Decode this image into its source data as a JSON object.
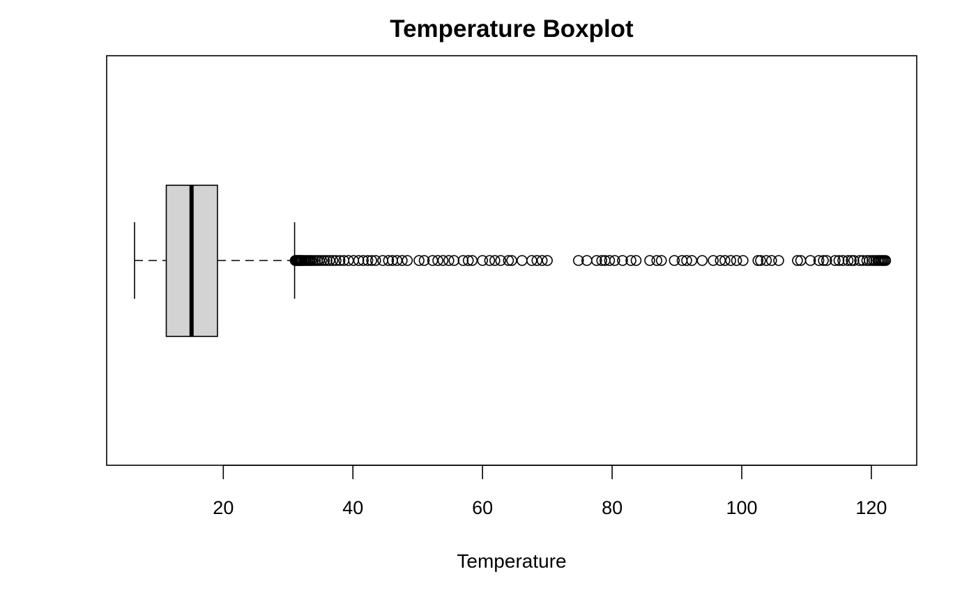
{
  "chart_data": {
    "type": "boxplot",
    "orientation": "horizontal",
    "title": "Temperature Boxplot",
    "xlabel": "Temperature",
    "ylabel": "",
    "xlim": [
      2,
      127
    ],
    "xticks": [
      20,
      40,
      60,
      80,
      100,
      120
    ],
    "xtick_labels": [
      "20",
      "40",
      "60",
      "80",
      "100",
      "120"
    ],
    "grid": false,
    "box": {
      "whisker_low": 6.3,
      "q1": 11.2,
      "median": 15.1,
      "q3": 19.1,
      "whisker_high": 31.0,
      "fill": "#d3d3d3"
    },
    "outliers": [
      31.1,
      31.2,
      31.3,
      31.4,
      31.5,
      31.6,
      31.7,
      31.8,
      31.9,
      32.0,
      32.1,
      32.2,
      32.4,
      32.6,
      32.8,
      33.0,
      33.2,
      33.4,
      33.6,
      33.9,
      34.2,
      34.5,
      34.8,
      35.2,
      35.6,
      36.0,
      36.4,
      36.9,
      37.4,
      38.0,
      38.6,
      39.3,
      40.1,
      40.9,
      41.6,
      42.3,
      42.9,
      43.5,
      44.6,
      45.5,
      46.1,
      46.8,
      47.6,
      48.4,
      50.2,
      51.0,
      52.3,
      53.1,
      53.9,
      54.8,
      55.6,
      57.0,
      57.8,
      58.4,
      60.0,
      61.1,
      61.9,
      62.8,
      64.0,
      64.5,
      66.1,
      67.6,
      68.4,
      69.2,
      70.0,
      74.8,
      76.1,
      77.6,
      78.4,
      78.9,
      79.6,
      80.4,
      81.6,
      82.9,
      83.7,
      85.8,
      86.9,
      87.6,
      89.6,
      90.8,
      91.5,
      92.3,
      93.9,
      95.6,
      96.7,
      97.4,
      98.3,
      99.2,
      100.2,
      102.5,
      102.9,
      103.8,
      104.6,
      105.7,
      108.6,
      109.1,
      110.6,
      111.9,
      112.6,
      113.1,
      114.4,
      115.0,
      115.6,
      116.4,
      116.9,
      117.3,
      118.2,
      118.7,
      119.3,
      119.7,
      120.1,
      120.4,
      120.7,
      121.0,
      121.2,
      121.4,
      121.6,
      121.8,
      122.0,
      122.2
    ]
  }
}
